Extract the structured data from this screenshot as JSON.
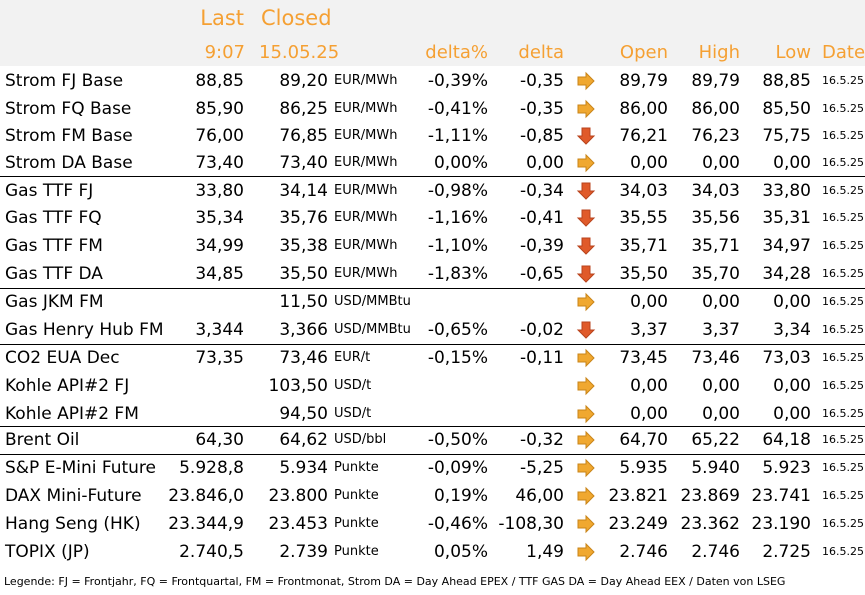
{
  "header": {
    "last": "Last",
    "closed": "Closed",
    "last_time": "9:07",
    "closed_date": "15.05.25",
    "delta_pct": "delta%",
    "delta": "delta",
    "open": "Open",
    "high": "High",
    "low": "Low",
    "date": "Date"
  },
  "colors": {
    "header_text": "#f5a033",
    "arrow_side": "#f0a830",
    "arrow_down": "#e05a2a",
    "header_bg": "#f2f2f2"
  },
  "rows": [
    {
      "name": "Strom FJ Base",
      "last": "88,85",
      "closed": "89,20",
      "unit": "EUR/MWh",
      "delta_pct": "-0,39%",
      "delta": "-0,35",
      "arrow": "side",
      "open": "89,79",
      "high": "89,79",
      "low": "88,85",
      "date": "16.5.25"
    },
    {
      "name": "Strom FQ Base",
      "last": "85,90",
      "closed": "86,25",
      "unit": "EUR/MWh",
      "delta_pct": "-0,41%",
      "delta": "-0,35",
      "arrow": "side",
      "open": "86,00",
      "high": "86,00",
      "low": "85,50",
      "date": "16.5.25"
    },
    {
      "name": "Strom FM Base",
      "last": "76,00",
      "closed": "76,85",
      "unit": "EUR/MWh",
      "delta_pct": "-1,11%",
      "delta": "-0,85",
      "arrow": "down",
      "open": "76,21",
      "high": "76,23",
      "low": "75,75",
      "date": "16.5.25"
    },
    {
      "name": "Strom DA Base",
      "last": "73,40",
      "closed": "73,40",
      "unit": "EUR/MWh",
      "delta_pct": "0,00%",
      "delta": "0,00",
      "arrow": "side",
      "open": "0,00",
      "high": "0,00",
      "low": "0,00",
      "date": "16.5.25"
    },
    {
      "name": "Gas TTF FJ",
      "last": "33,80",
      "closed": "34,14",
      "unit": "EUR/MWh",
      "delta_pct": "-0,98%",
      "delta": "-0,34",
      "arrow": "down",
      "open": "34,03",
      "high": "34,03",
      "low": "33,80",
      "date": "16.5.25"
    },
    {
      "name": "Gas TTF FQ",
      "last": "35,34",
      "closed": "35,76",
      "unit": "EUR/MWh",
      "delta_pct": "-1,16%",
      "delta": "-0,41",
      "arrow": "down",
      "open": "35,55",
      "high": "35,56",
      "low": "35,31",
      "date": "16.5.25"
    },
    {
      "name": "Gas TTF FM",
      "last": "34,99",
      "closed": "35,38",
      "unit": "EUR/MWh",
      "delta_pct": "-1,10%",
      "delta": "-0,39",
      "arrow": "down",
      "open": "35,71",
      "high": "35,71",
      "low": "34,97",
      "date": "16.5.25"
    },
    {
      "name": "Gas TTF DA",
      "last": "34,85",
      "closed": "35,50",
      "unit": "EUR/MWh",
      "delta_pct": "-1,83%",
      "delta": "-0,65",
      "arrow": "down",
      "open": "35,50",
      "high": "35,70",
      "low": "34,28",
      "date": "16.5.25"
    },
    {
      "name": "Gas JKM FM",
      "last": "",
      "closed": "11,50",
      "unit": "USD/MMBtu",
      "delta_pct": "",
      "delta": "",
      "arrow": "side",
      "open": "0,00",
      "high": "0,00",
      "low": "0,00",
      "date": "16.5.25"
    },
    {
      "name": "Gas Henry Hub FM",
      "last": "3,344",
      "closed": "3,366",
      "unit": "USD/MMBtu",
      "delta_pct": "-0,65%",
      "delta": "-0,02",
      "arrow": "down",
      "open": "3,37",
      "high": "3,37",
      "low": "3,34",
      "date": "16.5.25"
    },
    {
      "name": "CO2 EUA Dec",
      "last": "73,35",
      "closed": "73,46",
      "unit": "EUR/t",
      "delta_pct": "-0,15%",
      "delta": "-0,11",
      "arrow": "side",
      "open": "73,45",
      "high": "73,46",
      "low": "73,03",
      "date": "16.5.25"
    },
    {
      "name": "Kohle API#2 FJ",
      "last": "",
      "closed": "103,50",
      "unit": "USD/t",
      "delta_pct": "",
      "delta": "",
      "arrow": "side",
      "open": "0,00",
      "high": "0,00",
      "low": "0,00",
      "date": "16.5.25"
    },
    {
      "name": "Kohle API#2 FM",
      "last": "",
      "closed": "94,50",
      "unit": "USD/t",
      "delta_pct": "",
      "delta": "",
      "arrow": "side",
      "open": "0,00",
      "high": "0,00",
      "low": "0,00",
      "date": "16.5.25"
    },
    {
      "name": "Brent Oil",
      "last": "64,30",
      "closed": "64,62",
      "unit": "USD/bbl",
      "delta_pct": "-0,50%",
      "delta": "-0,32",
      "arrow": "side",
      "open": "64,70",
      "high": "65,22",
      "low": "64,18",
      "date": "16.5.25"
    },
    {
      "name": "S&P E-Mini Future",
      "last": "5.928,8",
      "closed": "5.934",
      "unit": "Punkte",
      "delta_pct": "-0,09%",
      "delta": "-5,25",
      "arrow": "side",
      "open": "5.935",
      "high": "5.940",
      "low": "5.923",
      "date": "16.5.25"
    },
    {
      "name": "DAX Mini-Future",
      "last": "23.846,0",
      "closed": "23.800",
      "unit": "Punkte",
      "delta_pct": "0,19%",
      "delta": "46,00",
      "arrow": "side",
      "open": "23.821",
      "high": "23.869",
      "low": "23.741",
      "date": "16.5.25"
    },
    {
      "name": "Hang Seng (HK)",
      "last": "23.344,9",
      "closed": "23.453",
      "unit": "Punkte",
      "delta_pct": "-0,46%",
      "delta": "-108,30",
      "arrow": "side",
      "open": "23.249",
      "high": "23.362",
      "low": "23.190",
      "date": "16.5.25"
    },
    {
      "name": "TOPIX (JP)",
      "last": "2.740,5",
      "closed": "2.739",
      "unit": "Punkte",
      "delta_pct": "0,05%",
      "delta": "1,49",
      "arrow": "side",
      "open": "2.746",
      "high": "2.746",
      "low": "2.725",
      "date": "16.5.25"
    }
  ],
  "legend": "Legende: FJ = Frontjahr, FQ = Frontquartal, FM = Frontmonat, Strom DA = Day Ahead EPEX / TTF GAS DA = Day Ahead EEX / Daten von LSEG"
}
